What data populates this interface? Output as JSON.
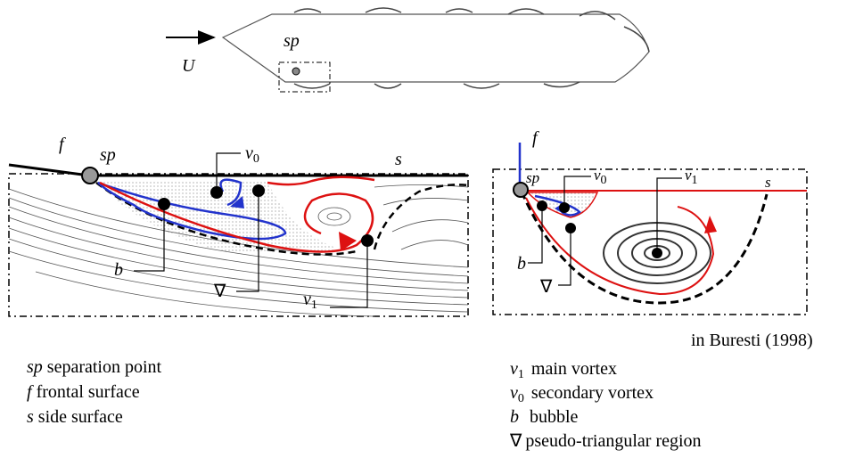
{
  "top_view": {
    "flow_label": "U",
    "point_label": "sp"
  },
  "left_panel": {
    "f": "f",
    "sp": "sp",
    "v0": {
      "symbol": "v",
      "subscript": "0"
    },
    "s": "s",
    "b": "b",
    "nabla": "∇",
    "v1": {
      "symbol": "v",
      "subscript": "1"
    }
  },
  "right_panel": {
    "f": "f",
    "sp": "sp",
    "v0": {
      "symbol": "v",
      "subscript": "0"
    },
    "v1": {
      "symbol": "v",
      "subscript": "1"
    },
    "s": "s",
    "b": "b",
    "nabla": "∇",
    "source": "in Buresti (1998)"
  },
  "legend_left": [
    {
      "symbol": "sp",
      "text": "separation point"
    },
    {
      "symbol": "f",
      "text": "frontal surface"
    },
    {
      "symbol": "s",
      "text": "side surface"
    }
  ],
  "legend_right": [
    {
      "symbol": "v",
      "subscript": "1",
      "text": "main vortex"
    },
    {
      "symbol": "v",
      "subscript": "0",
      "text": "secondary vortex"
    },
    {
      "symbol": "b",
      "text": "bubble"
    },
    {
      "symbol": "∇",
      "text": "pseudo-triangular region"
    }
  ]
}
